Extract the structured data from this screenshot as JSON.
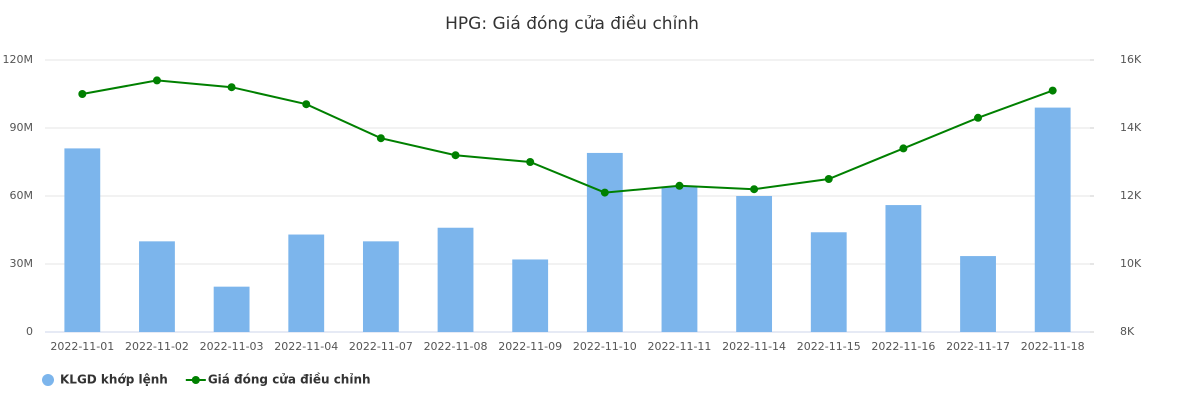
{
  "chart_data": {
    "type": "bar_line",
    "title": "HPG: Giá đóng cửa điều chỉnh",
    "categories": [
      "2022-11-01",
      "2022-11-02",
      "2022-11-03",
      "2022-11-04",
      "2022-11-07",
      "2022-11-08",
      "2022-11-09",
      "2022-11-10",
      "2022-11-11",
      "2022-11-14",
      "2022-11-15",
      "2022-11-16",
      "2022-11-17",
      "2022-11-18"
    ],
    "series": [
      {
        "name": "KLGD khớp lệnh",
        "type": "bar",
        "color": "#7cb5ec",
        "values": [
          81000000,
          40000000,
          20000000,
          43000000,
          40000000,
          46000000,
          32000000,
          79000000,
          64000000,
          60000000,
          44000000,
          56000000,
          33500000,
          99000000
        ]
      },
      {
        "name": "Giá đóng cửa điều chỉnh",
        "type": "line",
        "axis": "y2",
        "color": "#008000",
        "values": [
          15000,
          15400,
          15200,
          14700,
          13700,
          13200,
          13000,
          12100,
          12300,
          12200,
          12500,
          13400,
          14300,
          15100
        ]
      }
    ],
    "ylim": [
      0,
      120000000
    ],
    "yticks": [
      0,
      {
        "value": 30000000,
        "label": "30M"
      },
      {
        "value": 60000000,
        "label": "60M"
      },
      {
        "value": 90000000,
        "label": "90M"
      },
      {
        "value": 120000000,
        "label": "120M"
      }
    ],
    "y2lim": [
      8000,
      16000
    ],
    "y2ticks": [
      {
        "value": 8000,
        "label": "8K"
      },
      {
        "value": 10000,
        "label": "10K"
      },
      {
        "value": 12000,
        "label": "12K"
      },
      {
        "value": 14000,
        "label": "14K"
      },
      {
        "value": 16000,
        "label": "16K"
      }
    ],
    "grid": true
  }
}
